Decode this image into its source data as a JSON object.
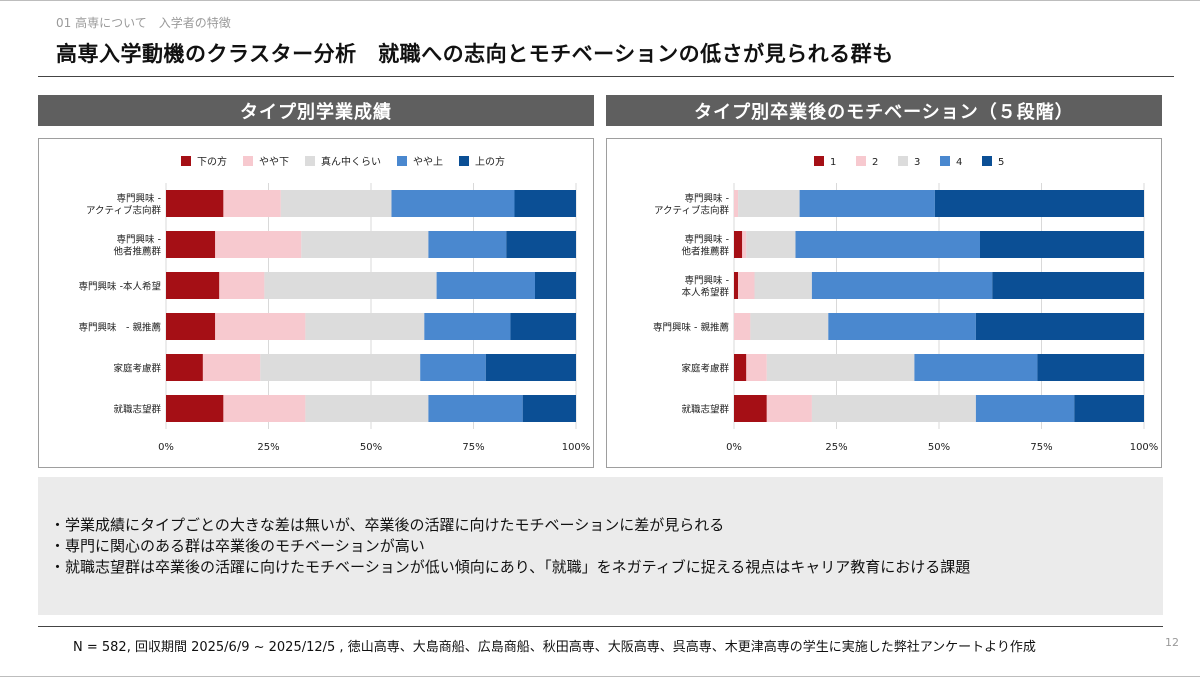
{
  "header": {
    "breadcrumb": "01 高専について　入学者の特徴",
    "title": "高専入学動機のクラスター分析　就職への志向とモチベーションの低さが見られる群も"
  },
  "panels": {
    "left_title": "タイプ別学業成績",
    "right_title": "タイプ別卒業後のモチベーション（５段階）"
  },
  "chart_data": [
    {
      "type": "bar",
      "orientation": "horizontal",
      "stacked": "percent",
      "title": "タイプ別学業成績",
      "categories": [
        [
          "専門興味 -",
          "アクティブ志向群"
        ],
        [
          "専門興味 -",
          "他者推薦群"
        ],
        [
          "専門興味 -本人希望"
        ],
        [
          "専門興味　- 親推薦"
        ],
        [
          "家庭考慮群"
        ],
        [
          "就職志望群"
        ]
      ],
      "series": [
        {
          "name": "下の方",
          "color": "#a50f15",
          "values": [
            14,
            12,
            13,
            12,
            9,
            14
          ]
        },
        {
          "name": "やや下",
          "color": "#f7c9cf",
          "values": [
            14,
            21,
            11,
            22,
            14,
            20
          ]
        },
        {
          "name": "真ん中くらい",
          "color": "#dcdcdc",
          "values": [
            27,
            31,
            42,
            29,
            39,
            30
          ]
        },
        {
          "name": "やや上",
          "color": "#4a88cf",
          "values": [
            30,
            19,
            24,
            21,
            16,
            23
          ]
        },
        {
          "name": "上の方",
          "color": "#0b4f95",
          "values": [
            15,
            17,
            10,
            16,
            22,
            13
          ]
        }
      ],
      "xlim": [
        0,
        100
      ],
      "xticks": [
        "0%",
        "25%",
        "50%",
        "75%",
        "100%"
      ],
      "legend": "top",
      "grid": "vertical"
    },
    {
      "type": "bar",
      "orientation": "horizontal",
      "stacked": "percent",
      "title": "タイプ別卒業後のモチベーション（５段階）",
      "categories": [
        [
          "専門興味 -",
          "アクティブ志向群"
        ],
        [
          "専門興味 -",
          "他者推薦群"
        ],
        [
          "専門興味 -",
          "本人希望群"
        ],
        [
          "専門興味 - 親推薦"
        ],
        [
          "家庭考慮群"
        ],
        [
          "就職志望群"
        ]
      ],
      "series": [
        {
          "name": "1",
          "color": "#a50f15",
          "values": [
            0,
            2,
            1,
            0,
            3,
            8
          ]
        },
        {
          "name": "2",
          "color": "#f7c9cf",
          "values": [
            1,
            1,
            4,
            4,
            5,
            11
          ]
        },
        {
          "name": "3",
          "color": "#dcdcdc",
          "values": [
            15,
            12,
            14,
            19,
            36,
            40
          ]
        },
        {
          "name": "4",
          "color": "#4a88cf",
          "values": [
            33,
            45,
            44,
            36,
            30,
            24
          ]
        },
        {
          "name": "5",
          "color": "#0b4f95",
          "values": [
            51,
            40,
            37,
            41,
            26,
            17
          ]
        }
      ],
      "xlim": [
        0,
        100
      ],
      "xticks": [
        "0%",
        "25%",
        "50%",
        "75%",
        "100%"
      ],
      "legend": "top",
      "grid": "vertical"
    }
  ],
  "notes": [
    "・学業成績にタイプごとの大きな差は無いが、卒業後の活躍に向けたモチベーションに差が見られる",
    "・専門に関心のある群は卒業後のモチベーションが高い",
    "・就職志望群は卒業後の活躍に向けたモチベーションが低い傾向にあり、「就職」をネガティブに捉える視点はキャリア教育における課題"
  ],
  "footer": {
    "source": "N = 582, 回収期間 2025/6/9 ~ 2025/12/5 , 徳山高専、大島商船、広島商船、秋田高専、大阪高専、呉高専、木更津高専の学生に実施した弊社アンケートより作成",
    "page": "12"
  }
}
